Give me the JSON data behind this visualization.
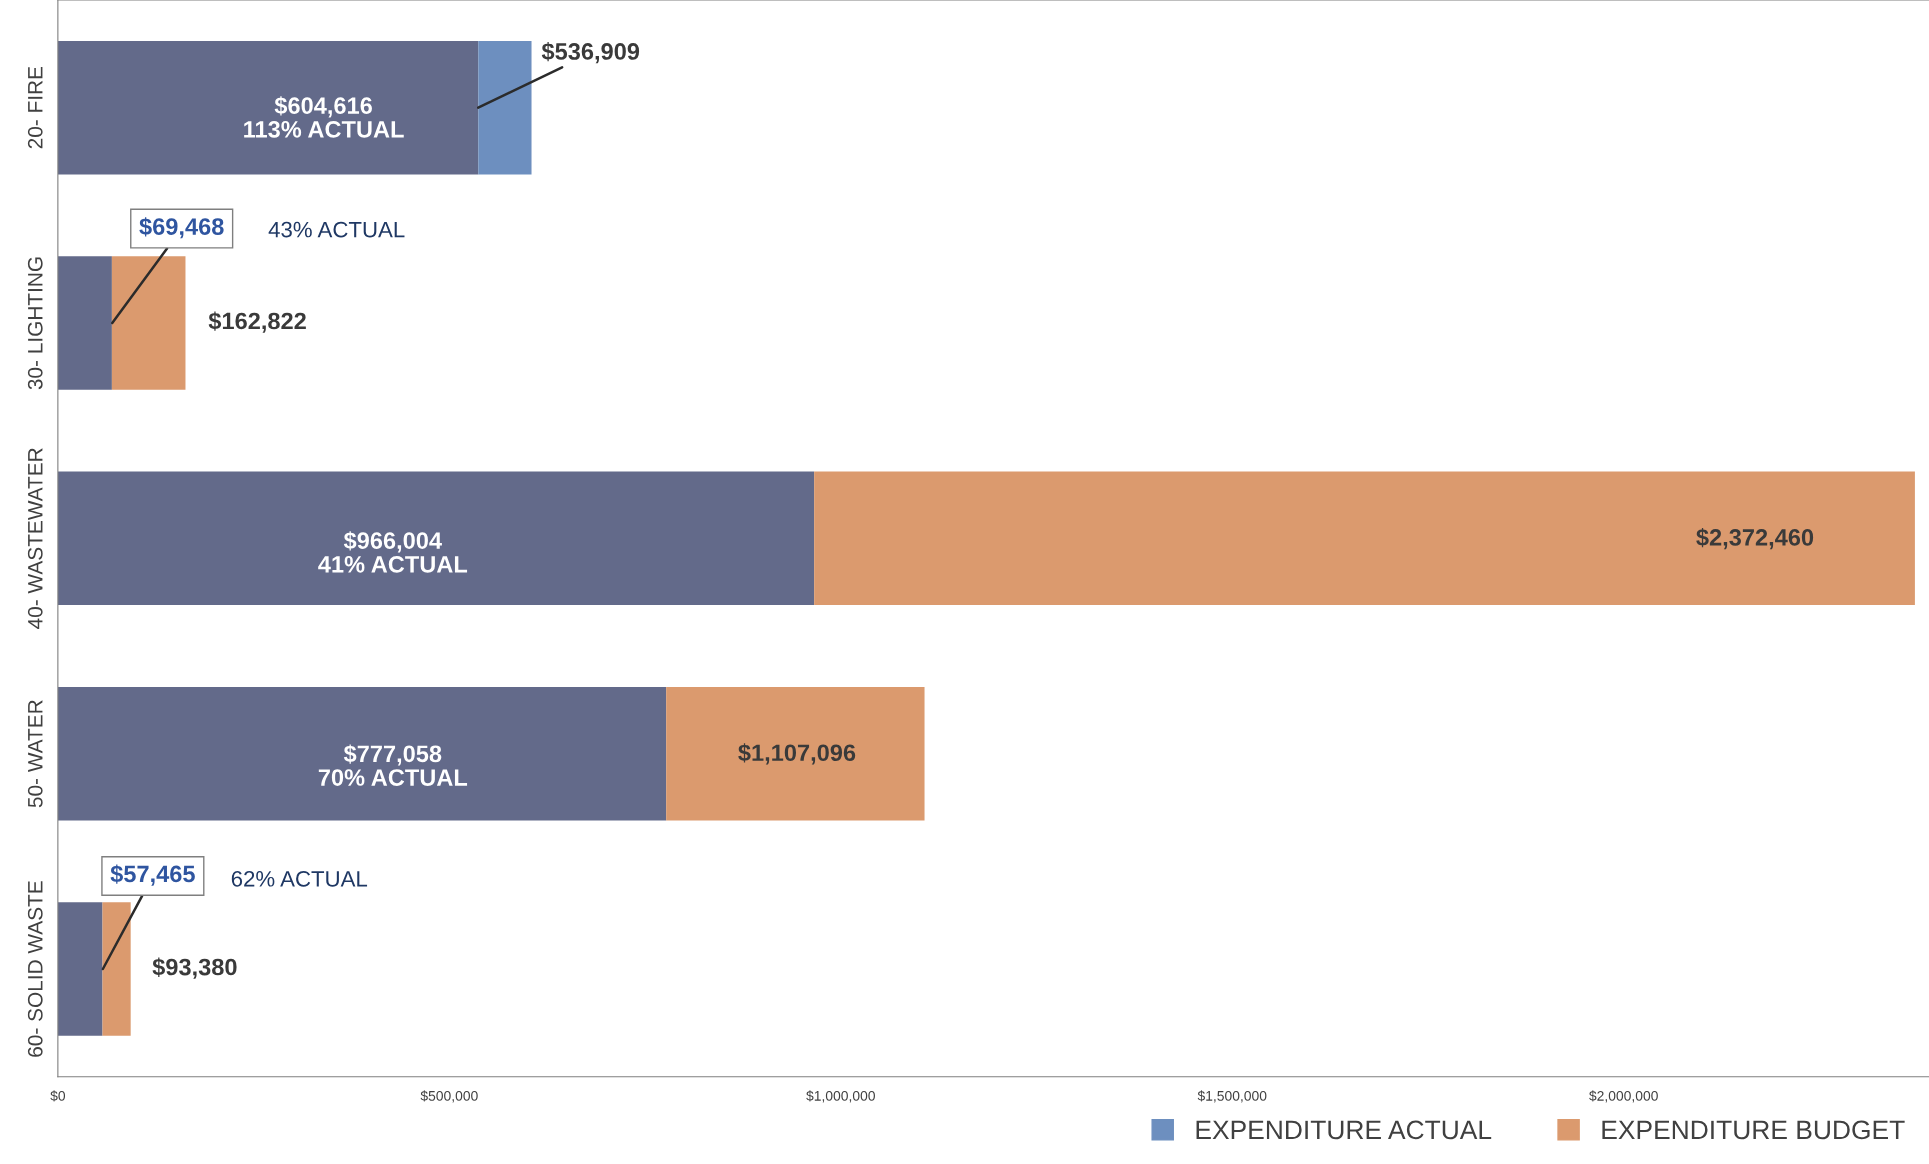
{
  "chart_data": {
    "type": "bar",
    "orientation": "horizontal",
    "stacked": true,
    "categories": [
      "20- FIRE",
      "30- LIGHTING",
      "40- WASTEWATER",
      "50- WATER",
      "60- SOLID WASTE"
    ],
    "series": [
      {
        "color": "#636a8a",
        "values": [
          537000,
          69000,
          966000,
          777000,
          57000
        ]
      },
      {
        "name": "EXPENDITURE ACTUAL",
        "color": "#6d8fbf",
        "values": [
          68000,
          null,
          null,
          null,
          null
        ]
      },
      {
        "name": "EXPENDITURE BUDGET",
        "color": "#db9a6e",
        "values": [
          null,
          94000,
          1406000,
          330000,
          36000
        ]
      }
    ],
    "xlim": [
      0,
      2390000
    ],
    "xticks": [
      {
        "value": 0,
        "label": "$0"
      },
      {
        "value": 500000,
        "label": "$500,000"
      },
      {
        "value": 1000000,
        "label": "$1,000,000"
      },
      {
        "value": 1500000,
        "label": "$1,500,000"
      },
      {
        "value": 2000000,
        "label": "$2,000,000"
      }
    ],
    "grid": false,
    "legend": "bottom right",
    "annotations": [
      "$604,616\n113% ACTUAL",
      {
        "text": "$536,909",
        "x": 536909,
        "y": "20- FIRE"
      },
      {
        "text": "$69,468",
        "x": 69468,
        "y": "30- LIGHTING"
      },
      "43% ACTUAL",
      {
        "text": "$162,822",
        "x": 162822,
        "y": "30- LIGHTING"
      },
      "$966,004\n41% ACTUAL",
      "$2,372,460",
      "$777,058\n70% ACTUAL",
      "$1,107,096",
      {
        "text": "$57,465",
        "x": 57465,
        "y": "60- SOLID WASTE"
      },
      "62% ACTUAL",
      {
        "text": "$93,380",
        "x": 93380,
        "y": "60- SOLID WASTE"
      }
    ]
  }
}
